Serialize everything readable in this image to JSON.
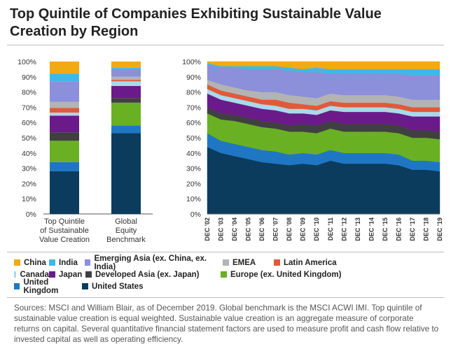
{
  "title": "Top Quintile of Companies Exhibiting Sustainable Value Creation by Region",
  "legend_rows": [
    [
      "China",
      "India",
      "Emerging Asia (ex. China, ex. India)",
      "EMEA",
      "Latin America"
    ],
    [
      "Canada",
      "Japan",
      "Developed Asia (ex. Japan)",
      "Europe (ex. United Kingdom)"
    ],
    [
      "United Kingdom",
      "United States"
    ]
  ],
  "source_text": "Sources: MSCI and William Blair, as of December 2019. Global benchmark is the MSCI ACWI IMI. Top quintile of sustainable value creation is equal weighted. Sustainable value creation is an aggregate measure of corporate returns on capital. Several quantitative financial statement factors are used to measure profit and cash flow relative to invested capital as well as operating efficiency.",
  "colors": {
    "United States": "#0b3c5d",
    "United Kingdom": "#1f77c4",
    "Europe (ex. United Kingdom)": "#6ab023",
    "Developed Asia (ex. Japan)": "#404040",
    "Japan": "#6b1a8a",
    "Canada": "#a9d9ec",
    "Latin America": "#e05a3a",
    "EMEA": "#b3b3b3",
    "Emerging Asia (ex. China, ex. India)": "#8c8fd9",
    "India": "#3fb8e8",
    "China": "#f2aa12"
  },
  "chart_data": [
    {
      "type": "bar",
      "stacked": true,
      "categories": [
        "Top Quintile of Sustainable Value Creation",
        "Global Equity Benchmark"
      ],
      "category_lines": [
        [
          "Top Quintile",
          "of Sustainable",
          "Value Creation"
        ],
        [
          "Global",
          "Equity",
          "Benchmark"
        ]
      ],
      "ylim": [
        0,
        100
      ],
      "yticks": [
        "0%",
        "10%",
        "20%",
        "30%",
        "40%",
        "50%",
        "60%",
        "70%",
        "80%",
        "90%",
        "100%"
      ],
      "series": [
        {
          "name": "United States",
          "values": [
            28,
            53
          ]
        },
        {
          "name": "United Kingdom",
          "values": [
            6,
            5
          ]
        },
        {
          "name": "Europe (ex. United Kingdom)",
          "values": [
            14,
            15
          ]
        },
        {
          "name": "Developed Asia (ex. Japan)",
          "values": [
            5.5,
            3
          ]
        },
        {
          "name": "Japan",
          "values": [
            11,
            8
          ]
        },
        {
          "name": "Canada",
          "values": [
            2,
            3
          ]
        },
        {
          "name": "Latin America",
          "values": [
            3,
            1
          ]
        },
        {
          "name": "EMEA",
          "values": [
            4,
            2
          ]
        },
        {
          "name": "Emerging Asia (ex. China, ex. India)",
          "values": [
            13.5,
            5
          ]
        },
        {
          "name": "India",
          "values": [
            5,
            1
          ]
        },
        {
          "name": "China",
          "values": [
            8,
            4
          ]
        }
      ]
    },
    {
      "type": "area",
      "stacked": true,
      "ylim": [
        0,
        100
      ],
      "yticks": [
        "0%",
        "10%",
        "20%",
        "30%",
        "40%",
        "50%",
        "60%",
        "70%",
        "80%",
        "90%",
        "100%"
      ],
      "x": [
        "DEC '02",
        "DEC '03",
        "DEC '04",
        "DEC '05",
        "DEC '06",
        "DEC '07",
        "DEC '08",
        "DEC '09",
        "DEC '10",
        "DEC '11",
        "DEC '12",
        "DEC '13",
        "DEC '14",
        "DEC '15",
        "DEC '16",
        "DEC '17",
        "DEC '18",
        "DEC '19"
      ],
      "series": [
        {
          "name": "United States",
          "values": [
            44,
            40,
            38,
            36,
            34,
            33,
            32,
            33,
            32,
            35,
            33,
            33,
            33,
            33,
            32,
            29,
            29,
            28
          ]
        },
        {
          "name": "United Kingdom",
          "values": [
            9,
            8,
            8,
            8,
            8,
            8,
            7,
            7,
            7,
            7,
            7,
            7,
            7,
            7,
            7,
            6,
            6,
            6
          ]
        },
        {
          "name": "Europe (ex. United Kingdom)",
          "values": [
            13,
            14,
            15,
            15,
            15,
            15,
            15,
            14,
            14,
            14,
            14,
            14,
            14,
            14,
            14,
            15,
            15,
            15
          ]
        },
        {
          "name": "Developed Asia (ex. Japan)",
          "values": [
            4,
            4,
            4,
            4,
            4,
            4,
            4,
            5,
            5,
            5,
            5,
            5,
            5,
            5,
            5,
            5,
            5,
            5
          ]
        },
        {
          "name": "Japan",
          "values": [
            9,
            9,
            8,
            8,
            8,
            8,
            8,
            7,
            7,
            7,
            8,
            8,
            8,
            8,
            8,
            9,
            9,
            10
          ]
        },
        {
          "name": "Canada",
          "values": [
            3,
            3,
            3,
            3,
            3,
            3,
            3,
            3,
            3,
            3,
            3,
            3,
            3,
            3,
            3,
            3,
            3,
            3
          ]
        },
        {
          "name": "Latin America",
          "values": [
            3,
            3,
            3,
            3,
            3,
            4,
            4,
            3,
            3,
            3,
            3,
            3,
            3,
            3,
            3,
            3,
            3,
            3
          ]
        },
        {
          "name": "EMEA",
          "values": [
            3,
            4,
            4,
            4,
            5,
            5,
            5,
            5,
            5,
            5,
            5,
            5,
            5,
            5,
            5,
            5,
            5,
            5
          ]
        },
        {
          "name": "Emerging Asia (ex. China, ex. India)",
          "values": [
            10,
            11,
            13,
            14,
            15,
            15,
            16,
            16,
            17,
            13,
            14,
            14,
            14,
            14,
            15,
            16,
            16,
            16
          ]
        },
        {
          "name": "India",
          "values": [
            1,
            1,
            1,
            2,
            2,
            2,
            2,
            2,
            3,
            3,
            3,
            3,
            3,
            3,
            3,
            4,
            4,
            4
          ]
        },
        {
          "name": "China",
          "values": [
            1,
            3,
            3,
            3,
            3,
            3,
            4,
            5,
            4,
            5,
            5,
            5,
            5,
            5,
            5,
            5,
            5,
            5
          ]
        }
      ]
    }
  ]
}
